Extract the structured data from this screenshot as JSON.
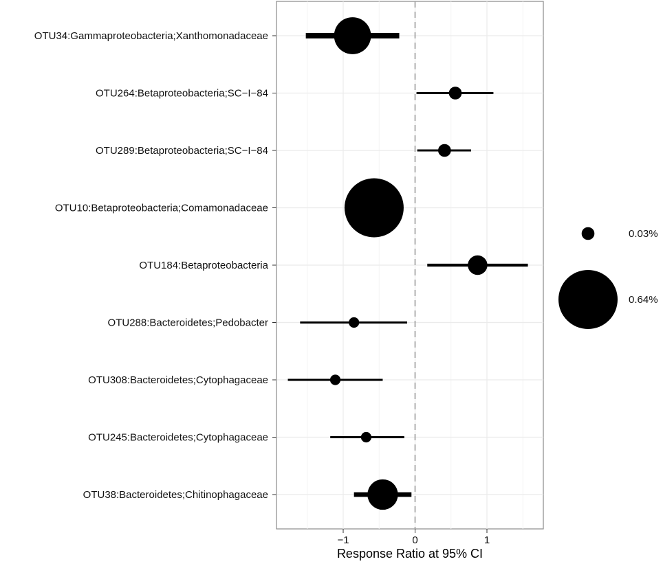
{
  "chart_data": {
    "type": "scatter",
    "title": "",
    "xlabel": "Response Ratio at 95% CI",
    "ylabel": "",
    "xlim": [
      -1.9,
      1.65
    ],
    "xticks": [
      {
        "value": -1,
        "label": "−1"
      },
      {
        "value": 0,
        "label": "0"
      },
      {
        "value": 1,
        "label": "1"
      }
    ],
    "reference_line": 0,
    "grid": true,
    "legend_position": "right",
    "point_color": "#000000",
    "categories": [
      "OTU34:Gammaproteobacteria;Xanthomonadaceae",
      "OTU264:Betaproteobacteria;SC−I−84",
      "OTU289:Betaproteobacteria;SC−I−84",
      "OTU10:Betaproteobacteria;Comamonadaceae",
      "OTU184:Betaproteobacteria",
      "OTU288:Bacteroidetes;Pedobacter",
      "OTU308:Bacteroidetes;Cytophagaceae",
      "OTU245:Bacteroidetes;Cytophagaceae",
      "OTU38:Bacteroidetes;Chitinophagaceae"
    ],
    "points": [
      {
        "estimate": -0.87,
        "lower": -1.52,
        "upper": -0.22,
        "abundance": 0.25
      },
      {
        "estimate": 0.56,
        "lower": 0.02,
        "upper": 1.09,
        "abundance": 0.03
      },
      {
        "estimate": 0.41,
        "lower": 0.03,
        "upper": 0.78,
        "abundance": 0.03
      },
      {
        "estimate": -0.57,
        "lower": -0.57,
        "upper": -0.57,
        "abundance": 0.64
      },
      {
        "estimate": 0.87,
        "lower": 0.17,
        "upper": 1.57,
        "abundance": 0.07
      },
      {
        "estimate": -0.85,
        "lower": -1.6,
        "upper": -0.11,
        "abundance": 0.02
      },
      {
        "estimate": -1.11,
        "lower": -1.77,
        "upper": -0.45,
        "abundance": 0.02
      },
      {
        "estimate": -0.68,
        "lower": -1.18,
        "upper": -0.15,
        "abundance": 0.02
      },
      {
        "estimate": -0.45,
        "lower": -0.85,
        "upper": -0.05,
        "abundance": 0.17
      }
    ],
    "size_legend": [
      {
        "value": 0.03,
        "label": "0.03%"
      },
      {
        "value": 0.64,
        "label": "0.64%"
      }
    ]
  }
}
